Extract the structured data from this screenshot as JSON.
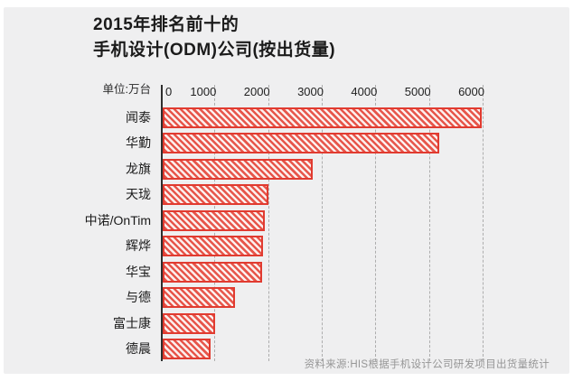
{
  "title": {
    "line1": "2015年排名前十的",
    "line2": "手机设计(ODM)公司(按出货量)"
  },
  "unit_label": "单位:万台",
  "source": "资料来源:HIS根据手机设计公司研发项目出货量统计",
  "colors": {
    "card_background": "#efeff0",
    "bar_border": "#e13b30",
    "bar_stripe": "#e7564b",
    "bar_bg": "#fcf0ee",
    "axis_line": "#2e2e2e",
    "gridline": "#adadad",
    "title_text": "#1b1b1b",
    "source_text": "#969696"
  },
  "chart_data": {
    "type": "bar",
    "orientation": "horizontal",
    "title": "2015年排名前十的手机设计(ODM)公司(按出货量)",
    "unit": "万台",
    "categories": [
      "闻泰",
      "华勤",
      "龙旗",
      "天珑",
      "中诺/OnTim",
      "辉烨",
      "华宝",
      "与德",
      "富士康",
      "德晨"
    ],
    "values": [
      5950,
      5150,
      2800,
      1980,
      1900,
      1870,
      1860,
      1350,
      970,
      890
    ],
    "x_ticks": [
      0,
      1000,
      2000,
      3000,
      4000,
      5000,
      6000
    ],
    "xlim": [
      0,
      6000
    ],
    "xlabel": "",
    "ylabel": "",
    "grid": "dashed-vertical",
    "legend": "none",
    "bar_style": "diagonal-hatch"
  }
}
